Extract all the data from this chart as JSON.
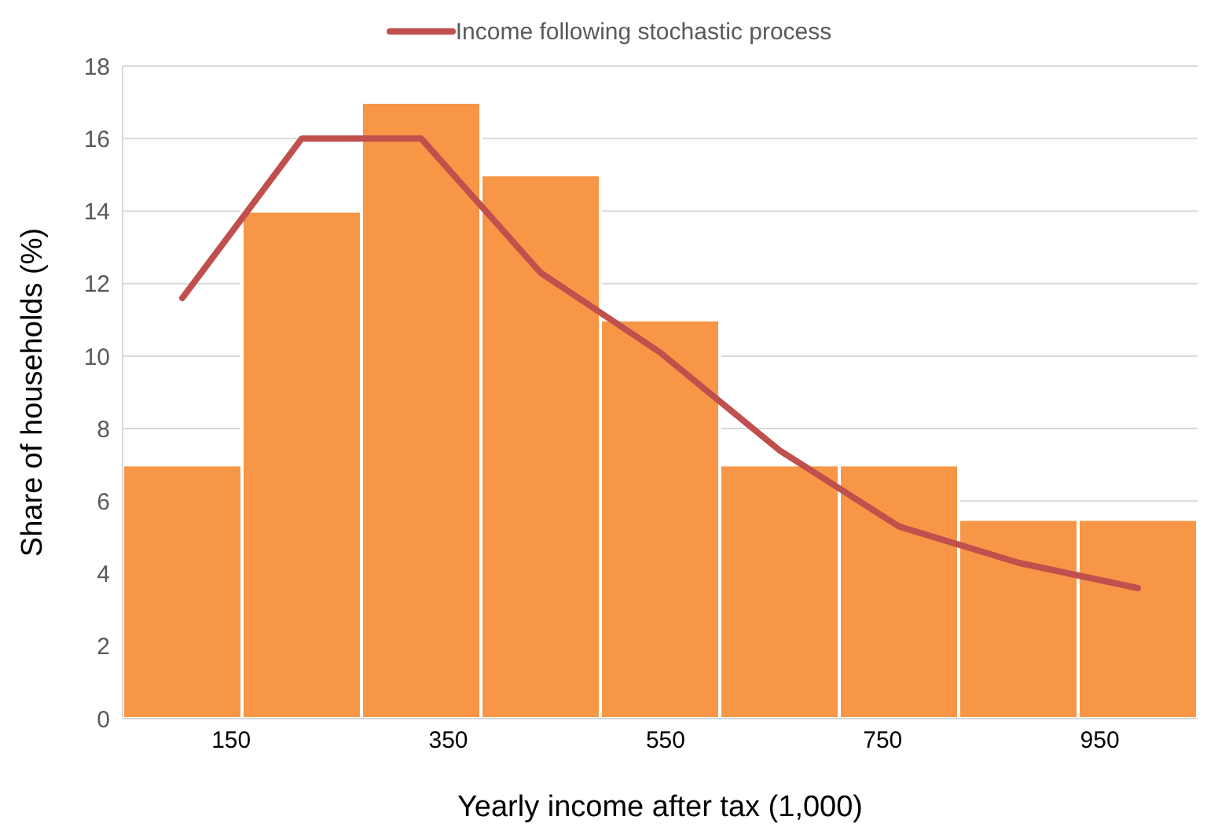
{
  "chart_data": {
    "type": "histogram",
    "xlabel": "Yearly income after tax (1,000)",
    "ylabel": "Share of households (%)",
    "bins": [
      50,
      160,
      270,
      380,
      490,
      600,
      710,
      820,
      930,
      1040
    ],
    "values": [
      7,
      14,
      17,
      15,
      11,
      7,
      7,
      5.5,
      5.5
    ],
    "color": "#f79646",
    "series": [
      {
        "type": "line",
        "name": "Income following stochastic process",
        "color": "#c0504d",
        "x": [
          105,
          215,
          325,
          435,
          545,
          655,
          765,
          875,
          985
        ],
        "values": [
          11.6,
          16,
          16,
          12.3,
          10.1,
          7.4,
          5.3,
          4.3,
          3.6
        ]
      }
    ],
    "xlim": [
      50,
      1040
    ],
    "xticks": [
      150,
      350,
      550,
      750,
      950
    ],
    "ylim": [
      0,
      18
    ],
    "yticks": [
      0,
      2,
      4,
      6,
      8,
      10,
      12,
      14,
      16,
      18
    ],
    "grid": "y",
    "legend": "top",
    "marker": "none"
  }
}
